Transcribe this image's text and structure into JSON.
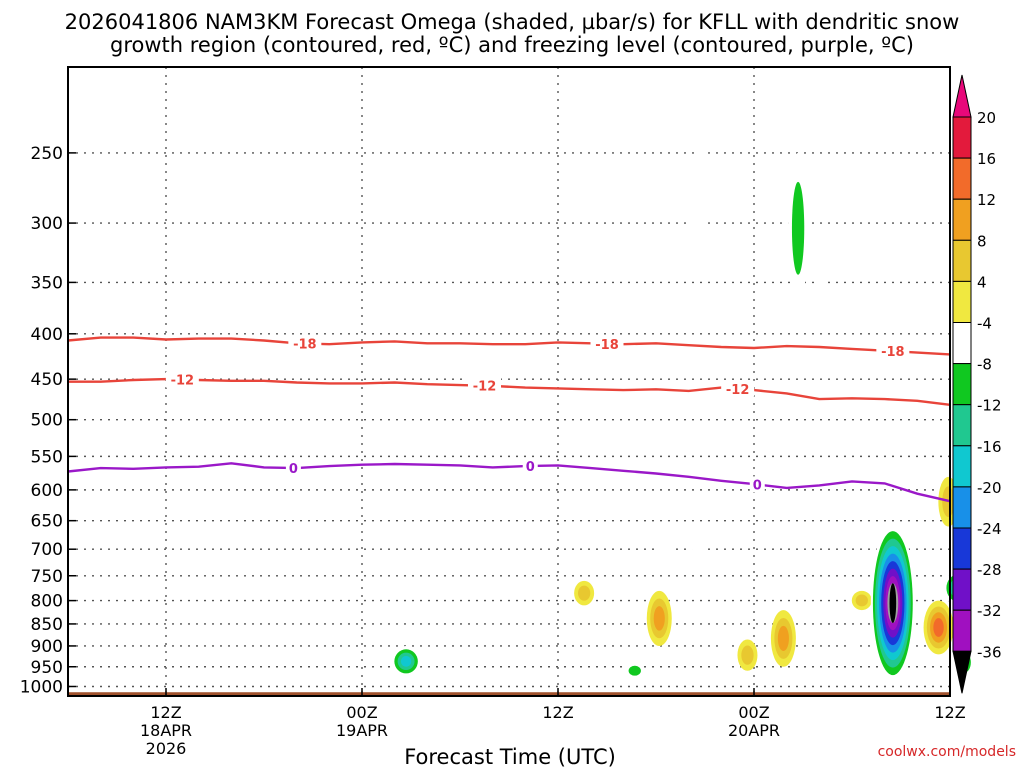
{
  "chart_data": {
    "type": "time-height section",
    "title_line1": "2026041806 NAM3KM Forecast Omega (shaded, µbar/s) for KFLL with dendritic snow",
    "title_line2": "growth region (contoured, red, ºC) and freezing level (contoured, purple, ºC)",
    "xlabel": "Forecast Time (UTC)",
    "credit": "coolwx.com/models",
    "xlim_hours": [
      0,
      54
    ],
    "x_ticks": [
      {
        "hour": 6,
        "l1": "12Z",
        "l2": "18APR",
        "l3": "2026"
      },
      {
        "hour": 18,
        "l1": "00Z",
        "l2": "19APR",
        "l3": ""
      },
      {
        "hour": 30,
        "l1": "12Z",
        "l2": "",
        "l3": ""
      },
      {
        "hour": 42,
        "l1": "00Z",
        "l2": "20APR",
        "l3": ""
      },
      {
        "hour": 54,
        "l1": "12Z",
        "l2": "",
        "l3": ""
      }
    ],
    "ylim_hpa": [
      1025,
      200
    ],
    "y_ticks": [
      250,
      300,
      350,
      400,
      450,
      500,
      550,
      600,
      650,
      700,
      750,
      800,
      850,
      900,
      950,
      1000
    ],
    "colorbar": {
      "levels": [
        20,
        16,
        12,
        8,
        4,
        -4,
        -8,
        -12,
        -16,
        -20,
        -24,
        -28,
        -32,
        -36
      ],
      "colors": [
        "#e31a3c",
        "#f26b2a",
        "#f0a020",
        "#e8c830",
        "#f0e840",
        "#ffffff",
        "#10c820",
        "#20c890",
        "#10c8d0",
        "#1890e8",
        "#1838d8",
        "#7010c8",
        "#a010c0",
        "#a0a0a0"
      ],
      "top_color": "#e8087a",
      "bottom_color": "#000000"
    },
    "series": [
      {
        "name": "-18 C isotherm",
        "color": "#e8443a",
        "label": "-18",
        "hours": [
          0,
          2,
          4,
          6,
          8,
          10,
          12,
          14,
          16,
          18,
          20,
          22,
          24,
          26,
          28,
          30,
          32,
          34,
          36,
          38,
          40,
          42,
          44,
          46,
          48,
          50,
          52,
          54
        ],
        "values": [
          407,
          404,
          404,
          406,
          405,
          405,
          407,
          410,
          411,
          409,
          408,
          410,
          410,
          411,
          411,
          409,
          410,
          411,
          410,
          412,
          414,
          415,
          413,
          414,
          416,
          418,
          420,
          422
        ],
        "label_hours": [
          14.5,
          33,
          50.5
        ]
      },
      {
        "name": "-12 C isotherm",
        "color": "#e8443a",
        "label": "-12",
        "hours": [
          0,
          2,
          4,
          6,
          8,
          10,
          12,
          14,
          16,
          18,
          20,
          22,
          24,
          26,
          28,
          30,
          32,
          34,
          36,
          38,
          40,
          42,
          44,
          46,
          48,
          50,
          52,
          54
        ],
        "values": [
          453,
          453,
          451,
          450,
          451,
          452,
          452,
          454,
          455,
          455,
          454,
          456,
          457,
          458,
          460,
          461,
          462,
          463,
          462,
          464,
          460,
          463,
          467,
          474,
          473,
          474,
          476,
          481
        ],
        "label_hours": [
          7,
          25.5,
          41
        ]
      },
      {
        "name": "0 C freezing level",
        "color": "#9a18c8",
        "label": "0",
        "hours": [
          0,
          2,
          4,
          6,
          8,
          10,
          12,
          14,
          16,
          18,
          20,
          22,
          24,
          26,
          28,
          30,
          32,
          34,
          36,
          38,
          40,
          42,
          44,
          46,
          48,
          50,
          52,
          54
        ],
        "values": [
          572,
          567,
          568,
          566,
          565,
          560,
          566,
          567,
          564,
          562,
          561,
          562,
          563,
          566,
          564,
          563,
          567,
          571,
          575,
          580,
          586,
          591,
          597,
          593,
          587,
          590,
          606,
          618
        ],
        "label_hours": [
          13.8,
          28.3,
          42.2
        ]
      }
    ],
    "omega_features": [
      {
        "hour": 38.6,
        "top": 245,
        "bottom": 330,
        "value": -6
      },
      {
        "hour": 44.7,
        "top": 250,
        "bottom": 370,
        "value": -10
      },
      {
        "hour": 46.2,
        "top": 318,
        "bottom": 353,
        "value": -6
      },
      {
        "hour": 20.7,
        "top": 900,
        "bottom": 975,
        "value": -18
      },
      {
        "hour": 31.6,
        "top": 760,
        "bottom": 810,
        "value": 5
      },
      {
        "hour": 36.2,
        "top": 780,
        "bottom": 900,
        "value": 11
      },
      {
        "hour": 36.6,
        "top": 690,
        "bottom": 730,
        "value": -6
      },
      {
        "hour": 34.7,
        "top": 940,
        "bottom": 980,
        "value": -10
      },
      {
        "hour": 38.6,
        "top": 660,
        "bottom": 715,
        "value": -6
      },
      {
        "hour": 40.2,
        "top": 890,
        "bottom": 960,
        "value": -6
      },
      {
        "hour": 41.6,
        "top": 885,
        "bottom": 960,
        "value": 6
      },
      {
        "hour": 43.8,
        "top": 820,
        "bottom": 950,
        "value": 10
      },
      {
        "hour": 48.1,
        "top": 860,
        "bottom": 910,
        "value": -6
      },
      {
        "hour": 48.6,
        "top": 780,
        "bottom": 820,
        "value": 5
      },
      {
        "hour": 50.5,
        "top": 655,
        "bottom": 990,
        "value": -38
      },
      {
        "hour": 53.3,
        "top": 800,
        "bottom": 920,
        "value": 12
      },
      {
        "hour": 53.9,
        "top": 580,
        "bottom": 660,
        "value": 6
      },
      {
        "hour": 54.5,
        "top": 740,
        "bottom": 810,
        "value": -16
      },
      {
        "hour": 54.9,
        "top": 900,
        "bottom": 980,
        "value": -8
      }
    ],
    "terrain_hpa": 1015
  }
}
